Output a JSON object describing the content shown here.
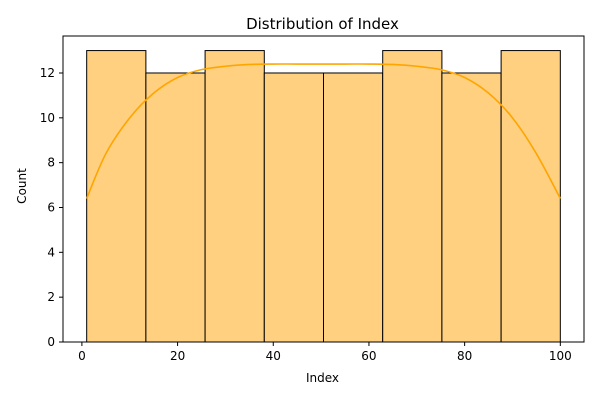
{
  "chart_data": {
    "type": "bar",
    "subtype": "histogram",
    "title": "Distribution of Index",
    "xlabel": "Index",
    "ylabel": "Count",
    "xlim": [
      -3.95,
      104.95
    ],
    "ylim": [
      0,
      13.65
    ],
    "xticks": [
      0,
      20,
      40,
      60,
      80,
      100
    ],
    "yticks": [
      0,
      2,
      4,
      6,
      8,
      10,
      12
    ],
    "bins": [
      {
        "start": 1.0,
        "end": 13.375,
        "count": 13
      },
      {
        "start": 13.375,
        "end": 25.75,
        "count": 12
      },
      {
        "start": 25.75,
        "end": 38.125,
        "count": 13
      },
      {
        "start": 38.125,
        "end": 50.5,
        "count": 12
      },
      {
        "start": 50.5,
        "end": 62.875,
        "count": 12
      },
      {
        "start": 62.875,
        "end": 75.25,
        "count": 13
      },
      {
        "start": 75.25,
        "end": 87.625,
        "count": 12
      },
      {
        "start": 87.625,
        "end": 100.0,
        "count": 13
      }
    ],
    "kde": {
      "x": [
        1,
        5,
        10,
        15,
        20,
        25,
        30,
        35,
        40,
        45,
        50,
        55,
        60,
        65,
        70,
        75,
        80,
        85,
        90,
        95,
        100
      ],
      "y": [
        6.4,
        8.4,
        10.0,
        11.1,
        11.8,
        12.15,
        12.3,
        12.38,
        12.4,
        12.4,
        12.4,
        12.4,
        12.4,
        12.38,
        12.3,
        12.15,
        11.8,
        11.1,
        10.0,
        8.4,
        6.4
      ]
    },
    "grid": false,
    "legend": "none",
    "colors": {
      "bar_fill": "#fed080",
      "bar_edge": "#000000",
      "kde_line": "#ffa500",
      "axis": "#000000"
    }
  }
}
